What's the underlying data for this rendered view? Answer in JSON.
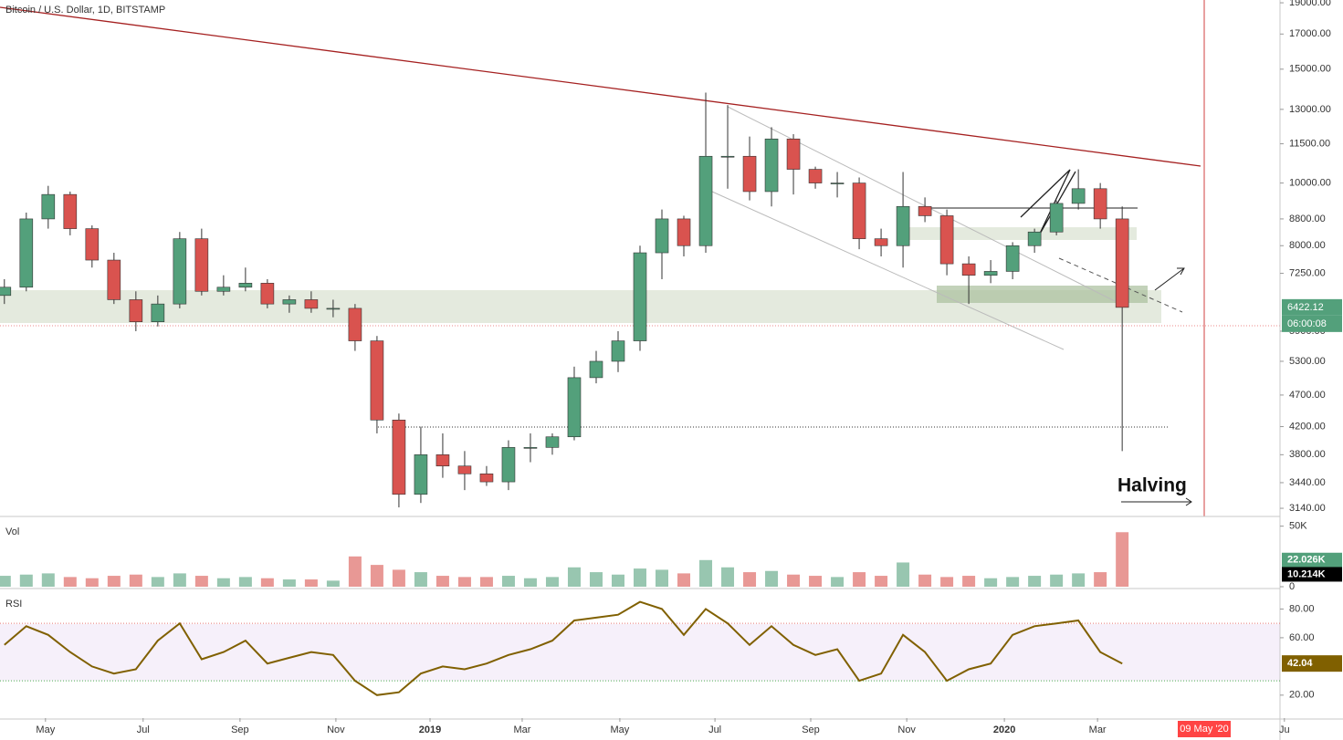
{
  "chart_data": {
    "type": "candlestick",
    "title": "Bitcoin / U.S. Dollar, 1D, BITSTAMP",
    "open": [
      6700,
      6900,
      8800,
      9600,
      8500,
      7600,
      6600,
      6100,
      6500,
      8200,
      6800,
      6900,
      7000,
      6500,
      6600,
      6400,
      6400,
      5700,
      4300,
      3300,
      3800,
      3650,
      3550,
      3450,
      3900,
      3900,
      4050,
      5000,
      5300,
      5700,
      7800,
      8800,
      8000,
      11000,
      11000,
      9700,
      11700,
      10500,
      10000,
      10000,
      8200,
      8000,
      9200,
      8900,
      7500,
      7200,
      7300,
      8000,
      8400,
      9300,
      9800,
      8800
    ],
    "high": [
      7100,
      9000,
      9900,
      9700,
      8600,
      7800,
      6800,
      6700,
      8400,
      8500,
      7200,
      7400,
      7100,
      6700,
      6800,
      6600,
      6500,
      5800,
      4400,
      4200,
      4100,
      3850,
      3650,
      4000,
      4100,
      4100,
      5200,
      5500,
      5900,
      8000,
      9100,
      8900,
      13800,
      13200,
      11800,
      12200,
      11900,
      10600,
      10400,
      10200,
      8500,
      10400,
      9500,
      9100,
      7700,
      7600,
      8100,
      8500,
      9400,
      10500,
      10000,
      9200
    ],
    "low": [
      6500,
      6800,
      8500,
      8300,
      7400,
      6500,
      5900,
      6000,
      6400,
      6700,
      6700,
      6800,
      6400,
      6300,
      6300,
      6200,
      5500,
      4100,
      3150,
      3200,
      3500,
      3350,
      3400,
      3350,
      3700,
      3800,
      4000,
      4900,
      5100,
      5500,
      7100,
      7700,
      7800,
      9800,
      9400,
      9200,
      9600,
      9800,
      9500,
      7900,
      7700,
      7400,
      8700,
      7200,
      6500,
      7000,
      7100,
      7800,
      8300,
      9100,
      8500,
      3850
    ],
    "close": [
      6900,
      8800,
      9600,
      8500,
      7600,
      6600,
      6100,
      6500,
      8200,
      6800,
      6900,
      7000,
      6500,
      6600,
      6400,
      6400,
      5700,
      4300,
      3300,
      3800,
      3650,
      3550,
      3450,
      3900,
      3900,
      4050,
      5000,
      5300,
      5700,
      7800,
      8800,
      8000,
      11000,
      11000,
      9700,
      11700,
      10500,
      10000,
      10000,
      8200,
      8000,
      9200,
      8900,
      7500,
      7200,
      7300,
      8000,
      8400,
      9300,
      9800,
      8800,
      6422.12
    ],
    "up_color": "#53a07b",
    "down_color": "#d9534f",
    "log_scale": true,
    "ylim": [
      3050,
      19190
    ],
    "yticks": [
      {
        "value": 19000,
        "label": "19000.00"
      },
      {
        "value": 17000,
        "label": "17000.00"
      },
      {
        "value": 15000,
        "label": "15000.00"
      },
      {
        "value": 13000,
        "label": "13000.00"
      },
      {
        "value": 11500,
        "label": "11500.00"
      },
      {
        "value": 10000,
        "label": "10000.00"
      },
      {
        "value": 8800,
        "label": "8800.00"
      },
      {
        "value": 8000,
        "label": "8000.00"
      },
      {
        "value": 7250,
        "label": "7250.00"
      },
      {
        "value": 5900,
        "label": "5900.00"
      },
      {
        "value": 5300,
        "label": "5300.00"
      },
      {
        "value": 4700,
        "label": "4700.00"
      },
      {
        "value": 4200,
        "label": "4200.00"
      },
      {
        "value": 3800,
        "label": "3800.00"
      },
      {
        "value": 3440,
        "label": "3440.00"
      },
      {
        "value": 3140,
        "label": "3140.00"
      }
    ],
    "xlim": [
      -0.2,
      58.2
    ],
    "xticks": [
      {
        "value": 1.875,
        "label": "May"
      },
      {
        "value": 6.33,
        "label": "Jul"
      },
      {
        "value": 10.75,
        "label": "Sep"
      },
      {
        "value": 15.125,
        "label": "Nov"
      },
      {
        "value": 19.42,
        "label": "2019"
      },
      {
        "value": 23.625,
        "label": "Mar"
      },
      {
        "value": 28.08,
        "label": "May"
      },
      {
        "value": 32.42,
        "label": "Jul"
      },
      {
        "value": 36.79,
        "label": "Sep"
      },
      {
        "value": 41.17,
        "label": "Nov"
      },
      {
        "value": 45.625,
        "label": "2020"
      },
      {
        "value": 49.875,
        "label": "Mar"
      },
      {
        "value": 58.4,
        "label": "Ju"
      }
    ],
    "last_price": 6422.12,
    "countdown": "06:00:08",
    "annotation": "Halving",
    "event_date": "09 May '20",
    "volume": {
      "title": "Vol",
      "values": [
        9000,
        10000,
        11000,
        8000,
        7000,
        9000,
        10000,
        8000,
        11000,
        9000,
        7000,
        8000,
        7000,
        6000,
        6000,
        5000,
        25000,
        18000,
        14000,
        12000,
        9000,
        8000,
        8000,
        9000,
        7000,
        8000,
        16000,
        12000,
        10000,
        15000,
        14000,
        11000,
        22000,
        16000,
        12000,
        13000,
        10000,
        9000,
        8000,
        12000,
        9000,
        20000,
        10000,
        8000,
        9000,
        7000,
        8000,
        9000,
        10000,
        11000,
        12000,
        45000
      ],
      "ylim": [
        0,
        55000
      ],
      "yticks": [
        {
          "value": 50000,
          "label": "50K"
        },
        0
      ],
      "markers": [
        {
          "value": 22026,
          "label": "22.026K",
          "color": "#53a07b"
        },
        {
          "value": 10214,
          "label": "10.214K",
          "color": "#000000"
        }
      ]
    },
    "rsi": {
      "title": "RSI",
      "values": [
        55,
        68,
        62,
        50,
        40,
        35,
        38,
        58,
        70,
        45,
        50,
        58,
        42,
        46,
        50,
        48,
        30,
        20,
        22,
        35,
        40,
        38,
        42,
        48,
        52,
        58,
        72,
        74,
        76,
        85,
        80,
        62,
        80,
        70,
        55,
        68,
        55,
        48,
        52,
        30,
        35,
        62,
        50,
        30,
        38,
        42,
        62,
        68,
        70,
        72,
        50,
        42.04
      ],
      "color": "#806000",
      "ylim": [
        4,
        93
      ],
      "yticks": [
        {
          "value": 80,
          "label": "80.00"
        },
        {
          "value": 60,
          "label": "60.00"
        },
        {
          "value": 20,
          "label": "20.00"
        }
      ],
      "bands": [
        30,
        70
      ]
    }
  }
}
